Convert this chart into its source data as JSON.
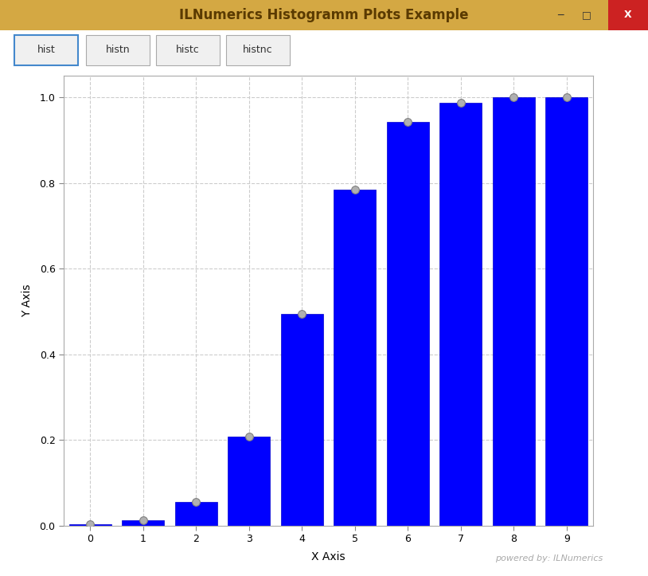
{
  "title": "ILNumerics Histogramm Plots Example",
  "xlabel": "X Axis",
  "ylabel": "Y Axis",
  "bar_x": [
    0,
    1,
    2,
    3,
    4,
    5,
    6,
    7,
    8,
    9
  ],
  "bar_heights": [
    0.003,
    0.013,
    0.055,
    0.208,
    0.494,
    0.784,
    0.942,
    0.987,
    1.0,
    1.0
  ],
  "bar_color": "#0000ff",
  "bar_edge_color": "#0000cc",
  "bar_width": 0.8,
  "dot_color": "#b0b0b0",
  "dot_edge_color": "#808080",
  "ylim": [
    0,
    1.05
  ],
  "xlim": [
    -0.5,
    9.5
  ],
  "yticks": [
    0,
    0.2,
    0.4,
    0.6,
    0.8,
    1.0
  ],
  "xticks": [
    0,
    1,
    2,
    3,
    4,
    5,
    6,
    7,
    8,
    9
  ],
  "grid_color": "#cccccc",
  "grid_style": "--",
  "background_color": "#ffffff",
  "outer_background": "#d4a843",
  "titlebar_color": "#d4a843",
  "content_bg": "#ffffff",
  "tab_labels": [
    "hist",
    "histn",
    "histc",
    "histnc"
  ],
  "tab_active": 0,
  "watermark": "powered by: ILNumerics",
  "title_fontsize": 12,
  "axis_label_fontsize": 10,
  "tick_fontsize": 9,
  "window_border_color": "#c8a030",
  "titlebar_text_color": "#5a3a00"
}
